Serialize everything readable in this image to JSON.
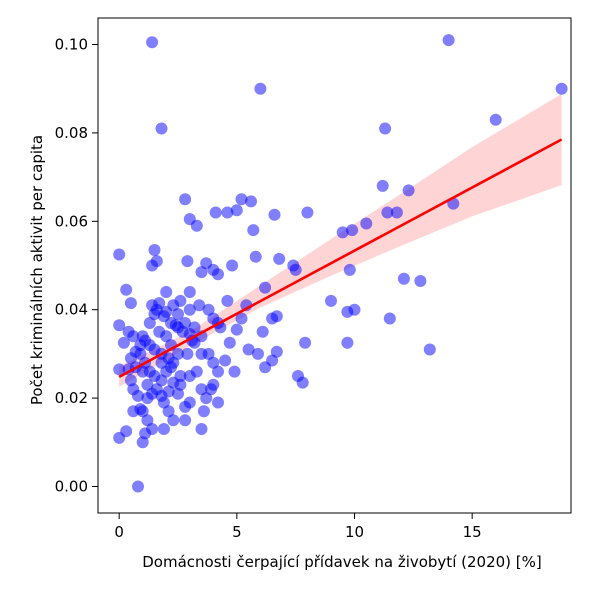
{
  "chart_data": {
    "type": "scatter",
    "title": "",
    "xlabel": "Domácnosti čerpající přídavek na živobytí (2020) [%]",
    "ylabel": "Počet kriminálních aktivit per capita",
    "xlim": [
      -0.9,
      19.2
    ],
    "ylim": [
      -0.006,
      0.106
    ],
    "xticks": [
      0,
      5,
      10,
      15
    ],
    "yticks": [
      0.0,
      0.02,
      0.04,
      0.06,
      0.08,
      0.1
    ],
    "xtick_labels": [
      "0",
      "5",
      "10",
      "15"
    ],
    "ytick_labels": [
      "0.00",
      "0.02",
      "0.04",
      "0.06",
      "0.08",
      "0.10"
    ],
    "grid": false,
    "point_color": "#0000ff",
    "point_opacity": 0.5,
    "regression": {
      "color": "#ff0000",
      "x_start": 0.0,
      "x_end": 18.8,
      "y_start": 0.0248,
      "y_end": 0.0785,
      "ci_color": "#ffb0b0",
      "ci_at": [
        {
          "x": 0.0,
          "lower": 0.0225,
          "upper": 0.0272
        },
        {
          "x": 3.0,
          "lower": 0.0318,
          "upper": 0.035
        },
        {
          "x": 6.0,
          "lower": 0.0405,
          "upper": 0.0455
        },
        {
          "x": 9.0,
          "lower": 0.0477,
          "upper": 0.056
        },
        {
          "x": 12.0,
          "lower": 0.0545,
          "upper": 0.0663
        },
        {
          "x": 15.0,
          "lower": 0.0611,
          "upper": 0.0768
        },
        {
          "x": 18.8,
          "lower": 0.0682,
          "upper": 0.0888
        }
      ]
    },
    "points": [
      [
        1.4,
        0.1005
      ],
      [
        1.8,
        0.081
      ],
      [
        6.0,
        0.09
      ],
      [
        14.0,
        0.101
      ],
      [
        18.8,
        0.09
      ],
      [
        16.0,
        0.083
      ],
      [
        11.3,
        0.081
      ],
      [
        11.2,
        0.068
      ],
      [
        12.3,
        0.067
      ],
      [
        14.2,
        0.064
      ],
      [
        11.4,
        0.062
      ],
      [
        11.8,
        0.062
      ],
      [
        10.5,
        0.0595
      ],
      [
        9.5,
        0.0575
      ],
      [
        9.9,
        0.058
      ],
      [
        8.0,
        0.062
      ],
      [
        12.1,
        0.047
      ],
      [
        12.8,
        0.0465
      ],
      [
        13.2,
        0.031
      ],
      [
        11.5,
        0.038
      ],
      [
        10.0,
        0.04
      ],
      [
        9.7,
        0.0395
      ],
      [
        9.0,
        0.042
      ],
      [
        9.8,
        0.049
      ],
      [
        9.7,
        0.0325
      ],
      [
        7.9,
        0.0325
      ],
      [
        7.6,
        0.025
      ],
      [
        7.8,
        0.0235
      ],
      [
        7.4,
        0.05
      ],
      [
        7.5,
        0.049
      ],
      [
        6.8,
        0.0515
      ],
      [
        5.2,
        0.065
      ],
      [
        5.7,
        0.058
      ],
      [
        5.8,
        0.052
      ],
      [
        5.0,
        0.0625
      ],
      [
        4.6,
        0.062
      ],
      [
        4.1,
        0.062
      ],
      [
        2.8,
        0.065
      ],
      [
        3.0,
        0.0605
      ],
      [
        3.3,
        0.059
      ],
      [
        5.6,
        0.0645
      ],
      [
        6.6,
        0.0615
      ],
      [
        6.2,
        0.045
      ],
      [
        6.5,
        0.038
      ],
      [
        6.7,
        0.0385
      ],
      [
        6.1,
        0.035
      ],
      [
        5.4,
        0.041
      ],
      [
        5.2,
        0.038
      ],
      [
        5.5,
        0.031
      ],
      [
        5.9,
        0.03
      ],
      [
        6.2,
        0.027
      ],
      [
        6.5,
        0.0285
      ],
      [
        6.7,
        0.0305
      ],
      [
        5.0,
        0.0355
      ],
      [
        4.9,
        0.026
      ],
      [
        4.7,
        0.0325
      ],
      [
        4.5,
        0.0285
      ],
      [
        4.6,
        0.042
      ],
      [
        4.8,
        0.05
      ],
      [
        4.2,
        0.048
      ],
      [
        3.5,
        0.0485
      ],
      [
        3.7,
        0.0505
      ],
      [
        4.0,
        0.049
      ],
      [
        3.0,
        0.044
      ],
      [
        3.4,
        0.041
      ],
      [
        3.8,
        0.04
      ],
      [
        4.0,
        0.038
      ],
      [
        4.2,
        0.037
      ],
      [
        3.8,
        0.03
      ],
      [
        4.0,
        0.028
      ],
      [
        4.2,
        0.026
      ],
      [
        3.5,
        0.022
      ],
      [
        3.7,
        0.02
      ],
      [
        4.2,
        0.019
      ],
      [
        3.5,
        0.013
      ],
      [
        3.6,
        0.017
      ],
      [
        2.8,
        0.015
      ],
      [
        2.8,
        0.018
      ],
      [
        3.0,
        0.019
      ],
      [
        2.5,
        0.021
      ],
      [
        2.6,
        0.023
      ],
      [
        3.0,
        0.025
      ],
      [
        3.3,
        0.026
      ],
      [
        2.9,
        0.03
      ],
      [
        3.1,
        0.033
      ],
      [
        2.8,
        0.037
      ],
      [
        2.5,
        0.039
      ],
      [
        2.3,
        0.041
      ],
      [
        2.0,
        0.044
      ],
      [
        1.7,
        0.0415
      ],
      [
        1.5,
        0.039
      ],
      [
        1.3,
        0.037
      ],
      [
        1.7,
        0.035
      ],
      [
        2.0,
        0.034
      ],
      [
        2.2,
        0.032
      ],
      [
        2.5,
        0.03
      ],
      [
        2.3,
        0.028
      ],
      [
        2.0,
        0.026
      ],
      [
        1.8,
        0.024
      ],
      [
        1.6,
        0.022
      ],
      [
        1.4,
        0.021
      ],
      [
        1.2,
        0.02
      ],
      [
        1.9,
        0.019
      ],
      [
        2.1,
        0.017
      ],
      [
        2.3,
        0.015
      ],
      [
        1.9,
        0.013
      ],
      [
        1.4,
        0.013
      ],
      [
        1.2,
        0.015
      ],
      [
        1.0,
        0.017
      ],
      [
        0.8,
        0.0205
      ],
      [
        0.6,
        0.022
      ],
      [
        0.5,
        0.024
      ],
      [
        0.4,
        0.0265
      ],
      [
        0.5,
        0.029
      ],
      [
        0.7,
        0.0305
      ],
      [
        0.9,
        0.032
      ],
      [
        1.0,
        0.034
      ],
      [
        0.6,
        0.034
      ],
      [
        0.4,
        0.035
      ],
      [
        0.2,
        0.0325
      ],
      [
        0.0,
        0.0365
      ],
      [
        0.0,
        0.0265
      ],
      [
        0.0,
        0.011
      ],
      [
        0.3,
        0.0125
      ],
      [
        0.6,
        0.017
      ],
      [
        0.9,
        0.0175
      ],
      [
        1.1,
        0.012
      ],
      [
        1.0,
        0.01
      ],
      [
        0.8,
        0.0
      ],
      [
        0.0,
        0.0525
      ],
      [
        0.3,
        0.0445
      ],
      [
        0.5,
        0.0415
      ],
      [
        1.5,
        0.0535
      ],
      [
        1.4,
        0.05
      ],
      [
        1.6,
        0.051
      ],
      [
        2.9,
        0.051
      ],
      [
        1.4,
        0.041
      ],
      [
        1.6,
        0.04
      ],
      [
        1.9,
        0.0385
      ],
      [
        2.2,
        0.037
      ],
      [
        2.5,
        0.036
      ],
      [
        2.7,
        0.035
      ],
      [
        3.2,
        0.036
      ],
      [
        3.5,
        0.034
      ],
      [
        3.2,
        0.0325
      ],
      [
        3.5,
        0.03
      ],
      [
        2.1,
        0.029
      ],
      [
        1.8,
        0.03
      ],
      [
        1.5,
        0.031
      ],
      [
        1.3,
        0.032
      ],
      [
        1.1,
        0.033
      ],
      [
        0.9,
        0.03
      ],
      [
        1.1,
        0.028
      ],
      [
        1.3,
        0.026
      ],
      [
        1.5,
        0.025
      ],
      [
        1.2,
        0.023
      ],
      [
        1.8,
        0.0205
      ],
      [
        2.1,
        0.0215
      ],
      [
        2.3,
        0.0235
      ],
      [
        2.6,
        0.025
      ],
      [
        3.9,
        0.022
      ],
      [
        4.0,
        0.023
      ],
      [
        2.0,
        0.0395
      ],
      [
        2.6,
        0.042
      ],
      [
        3.0,
        0.04
      ],
      [
        2.4,
        0.0365
      ],
      [
        1.0,
        0.026
      ],
      [
        0.7,
        0.027
      ],
      [
        4.3,
        0.036
      ],
      [
        3.0,
        0.0345
      ],
      [
        1.8,
        0.028
      ],
      [
        2.2,
        0.027
      ]
    ]
  }
}
